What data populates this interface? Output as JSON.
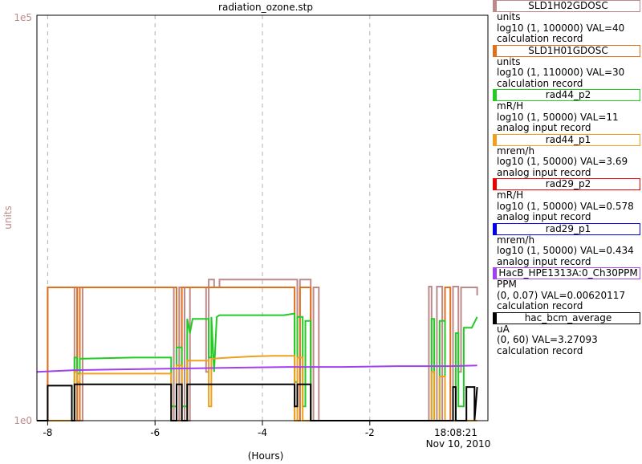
{
  "title": "radiation_ozone.stp",
  "chart_data": {
    "type": "line",
    "xlabel": "(Hours)",
    "ylabel": "units",
    "xlim": [
      -8.2,
      0.2
    ],
    "ylim": [
      1,
      100000
    ],
    "y_scale": "log",
    "y_tick_labels": [
      "1e0",
      "1e5"
    ],
    "x_ticks": [
      -8,
      -6,
      -4,
      -2
    ],
    "x_tick_labels": [
      "-8",
      "-6",
      "-4",
      "-2"
    ],
    "end_time": "18:08:21",
    "end_date": "Nov 10, 2010",
    "grid": true,
    "colors": {
      "rose": "#bc8a8a",
      "orange_dark": "#e0701c",
      "green": "#22cc22",
      "orange": "#f0a020",
      "purple": "#a040f0",
      "black": "#000000"
    },
    "series": [
      {
        "name": "SLD1H02GDOSC",
        "color": "#bc8a8a",
        "points": [
          [
            -8.2,
            1
          ],
          [
            -8.0,
            1
          ],
          [
            -8.0,
            44
          ],
          [
            -7.5,
            44
          ],
          [
            -7.5,
            1
          ],
          [
            -7.45,
            1
          ],
          [
            -7.45,
            44
          ],
          [
            -7.4,
            44
          ],
          [
            -7.4,
            1
          ],
          [
            -7.35,
            1
          ],
          [
            -7.35,
            44
          ],
          [
            -5.65,
            44
          ],
          [
            -5.65,
            1
          ],
          [
            -5.55,
            1
          ],
          [
            -5.55,
            44
          ],
          [
            -5.45,
            44
          ],
          [
            -5.45,
            1
          ],
          [
            -5.35,
            1
          ],
          [
            -5.35,
            44
          ],
          [
            -5.05,
            44
          ],
          [
            -5.05,
            4
          ],
          [
            -5.0,
            4
          ],
          [
            -5.0,
            55
          ],
          [
            -4.9,
            55
          ],
          [
            -4.9,
            44
          ],
          [
            -4.8,
            44
          ],
          [
            -4.8,
            55
          ],
          [
            -3.35,
            55
          ],
          [
            -3.35,
            1
          ],
          [
            -3.3,
            1
          ],
          [
            -3.3,
            55
          ],
          [
            -3.1,
            55
          ],
          [
            -3.1,
            1
          ],
          [
            -3.05,
            1
          ],
          [
            -3.05,
            44
          ],
          [
            -2.95,
            44
          ],
          [
            -2.95,
            1
          ],
          [
            -0.9,
            1
          ],
          [
            -0.9,
            45
          ],
          [
            -0.85,
            45
          ],
          [
            -0.85,
            1
          ],
          [
            -0.75,
            1
          ],
          [
            -0.75,
            45
          ],
          [
            -0.65,
            45
          ],
          [
            -0.65,
            1
          ],
          [
            -0.45,
            1
          ],
          [
            -0.45,
            45
          ],
          [
            -0.35,
            45
          ],
          [
            -0.35,
            4
          ],
          [
            -0.3,
            4
          ],
          [
            -0.3,
            44
          ],
          [
            0.0,
            44
          ],
          [
            0.0,
            35
          ]
        ]
      },
      {
        "name": "SLD1H01GDOSC",
        "color": "#e0701c",
        "points": [
          [
            -8.2,
            1
          ],
          [
            -8.0,
            1
          ],
          [
            -8.0,
            44
          ],
          [
            -7.45,
            44
          ],
          [
            -7.45,
            1
          ],
          [
            -7.4,
            1
          ],
          [
            -7.4,
            44
          ],
          [
            -5.6,
            44
          ],
          [
            -5.6,
            1
          ],
          [
            -5.5,
            1
          ],
          [
            -5.5,
            44
          ],
          [
            -3.4,
            44
          ],
          [
            -3.4,
            1
          ],
          [
            -3.3,
            1
          ],
          [
            -3.3,
            44
          ],
          [
            -3.1,
            44
          ],
          [
            -3.1,
            1
          ],
          [
            -0.6,
            1
          ],
          [
            -0.6,
            44
          ],
          [
            -0.5,
            44
          ],
          [
            -0.5,
            1
          ],
          [
            0.0,
            1
          ]
        ]
      },
      {
        "name": "rad44_p2",
        "color": "#22cc22",
        "points": [
          [
            -8.2,
            1
          ],
          [
            -7.5,
            1
          ],
          [
            -7.5,
            6
          ],
          [
            -7.45,
            6
          ],
          [
            -7.45,
            3.8
          ],
          [
            -7.4,
            3.8
          ],
          [
            -7.4,
            5.8
          ],
          [
            -6.4,
            6
          ],
          [
            -5.7,
            6
          ],
          [
            -5.7,
            1.5
          ],
          [
            -5.6,
            1.5
          ],
          [
            -5.6,
            8
          ],
          [
            -5.5,
            8
          ],
          [
            -5.5,
            1.5
          ],
          [
            -5.4,
            1.5
          ],
          [
            -5.4,
            18
          ],
          [
            -5.35,
            12
          ],
          [
            -5.3,
            18
          ],
          [
            -5.0,
            18
          ],
          [
            -5.0,
            6
          ],
          [
            -4.95,
            6
          ],
          [
            -4.95,
            19
          ],
          [
            -4.9,
            4
          ],
          [
            -4.85,
            19
          ],
          [
            -4.8,
            20
          ],
          [
            -4.4,
            20
          ],
          [
            -4.0,
            20
          ],
          [
            -3.6,
            20
          ],
          [
            -3.4,
            21
          ],
          [
            -3.4,
            3
          ],
          [
            -3.35,
            3
          ],
          [
            -3.35,
            19
          ],
          [
            -3.25,
            19
          ],
          [
            -3.25,
            1.5
          ],
          [
            -3.2,
            1.5
          ],
          [
            -3.2,
            17
          ],
          [
            -3.1,
            17
          ],
          [
            -3.1,
            1
          ],
          [
            -0.85,
            1
          ],
          [
            -0.85,
            18
          ],
          [
            -0.8,
            18
          ],
          [
            -0.8,
            1
          ],
          [
            -0.7,
            1
          ],
          [
            -0.7,
            17
          ],
          [
            -0.6,
            17
          ],
          [
            -0.6,
            1
          ],
          [
            -0.4,
            1
          ],
          [
            -0.4,
            12
          ],
          [
            -0.35,
            12
          ],
          [
            -0.35,
            1.5
          ],
          [
            -0.25,
            1.5
          ],
          [
            -0.25,
            14
          ],
          [
            -0.1,
            14
          ],
          [
            0.0,
            19
          ]
        ]
      },
      {
        "name": "rad44_p1",
        "color": "#f0a020",
        "points": [
          [
            -8.2,
            1
          ],
          [
            -7.5,
            1
          ],
          [
            -7.5,
            4
          ],
          [
            -7.45,
            4
          ],
          [
            -7.45,
            3
          ],
          [
            -7.4,
            3
          ],
          [
            -7.4,
            3.8
          ],
          [
            -5.7,
            3.8
          ],
          [
            -5.7,
            1
          ],
          [
            -5.6,
            1
          ],
          [
            -5.6,
            4.8
          ],
          [
            -5.5,
            4.8
          ],
          [
            -5.5,
            1
          ],
          [
            -5.4,
            1
          ],
          [
            -5.4,
            5.5
          ],
          [
            -5.0,
            5.5
          ],
          [
            -5.0,
            1.5
          ],
          [
            -4.95,
            1.5
          ],
          [
            -4.95,
            5.8
          ],
          [
            -4.6,
            6
          ],
          [
            -4.2,
            6.2
          ],
          [
            -3.8,
            6.3
          ],
          [
            -3.4,
            6.3
          ],
          [
            -3.4,
            1
          ],
          [
            -3.35,
            1
          ],
          [
            -3.35,
            6
          ],
          [
            -3.25,
            6
          ],
          [
            -3.25,
            1
          ],
          [
            -0.85,
            1
          ],
          [
            -0.85,
            4
          ],
          [
            -0.8,
            4
          ],
          [
            -0.8,
            1
          ],
          [
            -0.7,
            1
          ],
          [
            -0.7,
            3.5
          ],
          [
            -0.6,
            3.5
          ],
          [
            -0.6,
            1
          ],
          [
            0.0,
            1
          ]
        ]
      },
      {
        "name": "HacB_HPE1313A:0_Ch30PPM",
        "color": "#a040f0",
        "points": [
          [
            -8.2,
            4
          ],
          [
            -7.5,
            4.2
          ],
          [
            -6.5,
            4.3
          ],
          [
            -5.5,
            4.4
          ],
          [
            -4.5,
            4.5
          ],
          [
            -3.5,
            4.6
          ],
          [
            -2.5,
            4.6
          ],
          [
            -1.5,
            4.7
          ],
          [
            -0.5,
            4.7
          ],
          [
            0.0,
            4.8
          ]
        ]
      },
      {
        "name": "hac_bcm_average",
        "color": "#000000",
        "points": [
          [
            -8.2,
            1
          ],
          [
            -8.0,
            1
          ],
          [
            -8.0,
            2.7
          ],
          [
            -7.55,
            2.7
          ],
          [
            -7.55,
            1
          ],
          [
            -7.5,
            1
          ],
          [
            -7.5,
            2.8
          ],
          [
            -5.7,
            2.8
          ],
          [
            -5.7,
            1
          ],
          [
            -5.6,
            1
          ],
          [
            -5.6,
            2.8
          ],
          [
            -5.5,
            2.8
          ],
          [
            -5.5,
            1
          ],
          [
            -5.4,
            1
          ],
          [
            -5.4,
            2.8
          ],
          [
            -3.4,
            2.8
          ],
          [
            -3.4,
            1.5
          ],
          [
            -3.35,
            1.5
          ],
          [
            -3.35,
            2.8
          ],
          [
            -3.1,
            2.8
          ],
          [
            -3.1,
            1
          ],
          [
            -0.45,
            1
          ],
          [
            -0.45,
            2.6
          ],
          [
            -0.4,
            2.6
          ],
          [
            -0.4,
            1
          ],
          [
            -0.2,
            1
          ],
          [
            -0.2,
            2.6
          ],
          [
            -0.05,
            2.6
          ],
          [
            -0.05,
            1
          ],
          [
            0.0,
            2.6
          ]
        ]
      }
    ]
  },
  "legend": [
    {
      "name": "SLD1H02GDOSC",
      "color": "#bc8a8a",
      "unit": "units",
      "range": "log10 (1, 100000) VAL=40",
      "kind": "calculation record"
    },
    {
      "name": "SLD1H01GDOSC",
      "color": "#e0701c",
      "unit": "units",
      "range": "log10 (1, 110000) VAL=30",
      "kind": "calculation record"
    },
    {
      "name": "rad44_p2",
      "color": "#22cc22",
      "unit": "mR/H",
      "range": "log10 (1, 50000) VAL=11",
      "kind": "analog input record"
    },
    {
      "name": "rad44_p1",
      "color": "#f0a020",
      "unit": "mrem/h",
      "range": "log10 (1, 50000) VAL=3.69",
      "kind": "analog input record"
    },
    {
      "name": "rad29_p2",
      "color": "#ee0000",
      "unit": "mR/H",
      "range": "log10 (1, 50000) VAL=0.578",
      "kind": "analog input record"
    },
    {
      "name": "rad29_p1",
      "color": "#0000ee",
      "unit": "mrem/h",
      "range": "log10 (1, 50000) VAL=0.434",
      "kind": "analog input record"
    },
    {
      "name": "HacB_HPE1313A:0_Ch30PPM",
      "color": "#a040f0",
      "unit": "PPM",
      "range": "(0, 0.07) VAL=0.00620117",
      "kind": "calculation record"
    },
    {
      "name": "hac_bcm_average",
      "color": "#000000",
      "unit": "uA",
      "range": "(0, 60) VAL=3.27093",
      "kind": "calculation record"
    }
  ]
}
